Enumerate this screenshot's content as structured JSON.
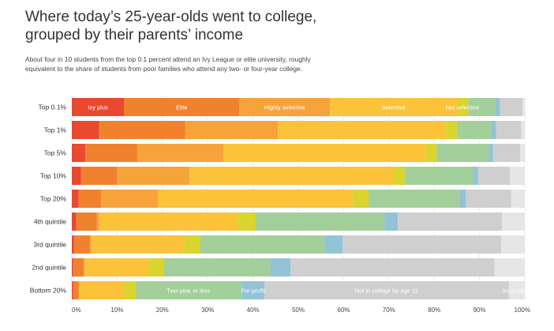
{
  "header": {
    "title": "Where today’s 25-year-olds went to college, grouped by their parents’ income",
    "subtitle": "About four in 10 students from the top 0.1 percent attend an Ivy League or elite university, roughly equivalent to the share of students from poor families who attend any two- or four-year college."
  },
  "colors": {
    "ivy_plus": "#E8492F",
    "elite": "#F0822E",
    "highly_selective": "#F6A33A",
    "selective": "#FBC23A",
    "not_selective": "#D9D42E",
    "two_year": "#A3CF9B",
    "for_profit": "#92C3D6",
    "not_in_college": "#CFCFCF",
    "incomplete": "#E6E6E6",
    "gridline": "#ECECEC"
  },
  "chart_data": {
    "type": "bar",
    "orientation": "horizontal",
    "stacked": true,
    "title": "Where today’s 25-year-olds went to college, grouped by their parents’ income",
    "xlabel": "",
    "ylabel": "",
    "xlim": [
      0,
      100
    ],
    "x_ticks": [
      "0%",
      "10%",
      "20%",
      "30%",
      "40%",
      "50%",
      "60%",
      "70%",
      "80%",
      "90%",
      "100%"
    ],
    "categories": [
      "Top 0.1%",
      "Top 1%",
      "Top 5%",
      "Top 10%",
      "Top 20%",
      "4th quintile",
      "3rd quintile",
      "2nd quintile",
      "Bottom 20%"
    ],
    "segment_labels": [
      {
        "row": 0,
        "series": 0,
        "text": "Ivy plus"
      },
      {
        "row": 0,
        "series": 1,
        "text": "Elite"
      },
      {
        "row": 0,
        "series": 2,
        "text": "Highly selective"
      },
      {
        "row": 0,
        "series": 3,
        "text": "Selective"
      },
      {
        "row": 0,
        "series": 4,
        "text": "Not selective"
      },
      {
        "row": 8,
        "series": 5,
        "text": "Two-year or less"
      },
      {
        "row": 8,
        "series": 6,
        "text": "For-profit"
      },
      {
        "row": 8,
        "series": 7,
        "text": "Not in college by age 22"
      },
      {
        "row": 8,
        "series": 8,
        "text": "Incomplete"
      }
    ],
    "series": [
      {
        "key": "ivy_plus",
        "values": [
          11.5,
          6,
          3,
          2,
          1.5,
          1,
          0.5,
          0.3,
          0.3
        ]
      },
      {
        "key": "elite",
        "values": [
          25.5,
          19,
          11.5,
          8,
          5,
          4.5,
          3.5,
          2.3,
          1.2
        ]
      },
      {
        "key": "highly_selective",
        "values": [
          20,
          20.5,
          19,
          16,
          12.5,
          0.5,
          0.3,
          0.2,
          0.2
        ]
      },
      {
        "key": "selective",
        "values": [
          28,
          37,
          44.5,
          45,
          43,
          30.5,
          20.5,
          14,
          9.8
        ]
      },
      {
        "key": "not_selective",
        "values": [
          2.5,
          2.5,
          2.5,
          2.5,
          3.5,
          4,
          3.5,
          3.5,
          2.5
        ]
      },
      {
        "key": "two_year",
        "values": [
          6,
          7.5,
          11.5,
          15,
          20,
          28.5,
          27.5,
          23.5,
          23.5
        ]
      },
      {
        "key": "for_profit",
        "values": [
          1,
          1.2,
          1,
          1.2,
          1.5,
          3,
          4,
          4.5,
          5
        ]
      },
      {
        "key": "not_in_college",
        "values": [
          5,
          5.5,
          6,
          7,
          10,
          23,
          35,
          45,
          54
        ]
      },
      {
        "key": "incomplete",
        "values": [
          0.5,
          0.8,
          1,
          3.3,
          3,
          5,
          5.2,
          6.7,
          3.5
        ]
      }
    ]
  }
}
